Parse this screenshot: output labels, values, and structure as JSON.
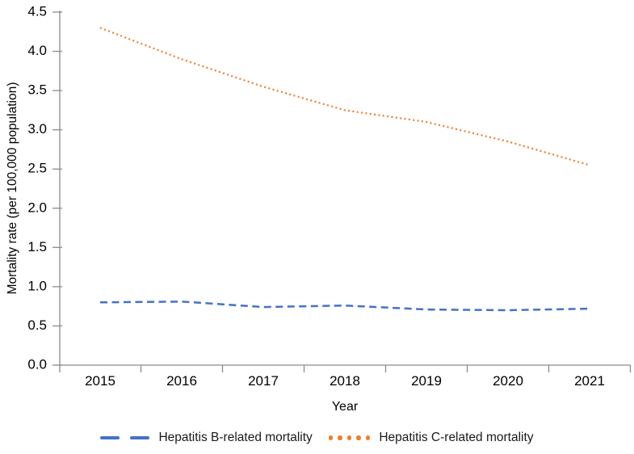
{
  "chart_data": {
    "type": "line",
    "title": "",
    "xlabel": "Year",
    "ylabel": "Mortality rate (per 100,000 population)",
    "categories": [
      "2015",
      "2016",
      "2017",
      "2018",
      "2019",
      "2020",
      "2021"
    ],
    "ylim": [
      0,
      4.5
    ],
    "ytick_step": 0.5,
    "grid": false,
    "legend_position": "bottom",
    "series": [
      {
        "name": "Hepatitis B-related mortality",
        "style": "dashed",
        "color": "#4472C4",
        "values": [
          0.8,
          0.81,
          0.74,
          0.76,
          0.71,
          0.7,
          0.72
        ]
      },
      {
        "name": "Hepatitis C-related mortality",
        "style": "dotted",
        "color": "#ED7D31",
        "values": [
          4.3,
          3.9,
          3.55,
          3.25,
          3.1,
          2.85,
          2.55
        ]
      }
    ]
  },
  "colors": {
    "axis": "#8c8c8c",
    "tick_label": "#000000",
    "hep_b_blue": "#4472C4",
    "hep_c_orange": "#ED7D31"
  }
}
